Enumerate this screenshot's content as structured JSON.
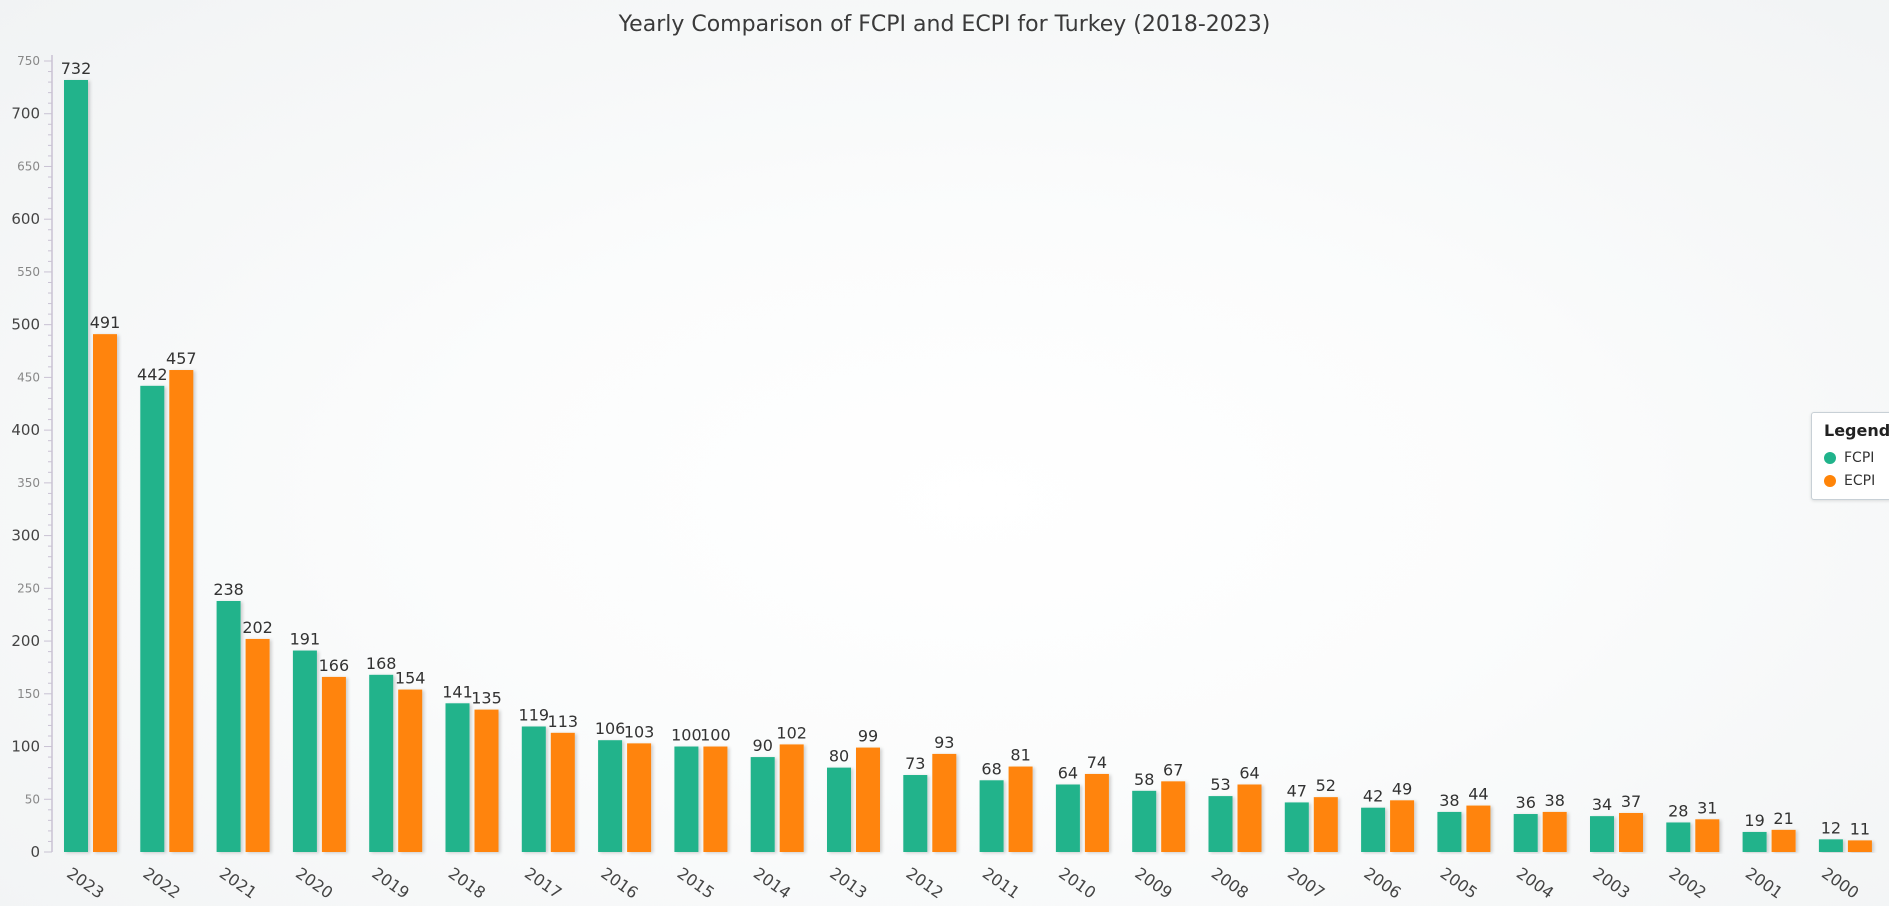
{
  "chart_data": {
    "type": "bar",
    "title": "Yearly Comparison of FCPI and ECPI for Turkey (2018-2023)",
    "xlabel": "",
    "ylabel": "",
    "ylim": [
      0,
      750
    ],
    "y_ticks": [
      0,
      50,
      100,
      150,
      200,
      250,
      300,
      350,
      400,
      450,
      500,
      550,
      600,
      650,
      700,
      750
    ],
    "categories": [
      "2023",
      "2022",
      "2021",
      "2020",
      "2019",
      "2018",
      "2017",
      "2016",
      "2015",
      "2014",
      "2013",
      "2012",
      "2011",
      "2010",
      "2009",
      "2008",
      "2007",
      "2006",
      "2005",
      "2004",
      "2003",
      "2002",
      "2001",
      "2000"
    ],
    "series": [
      {
        "name": "FCPI",
        "color": "#20b38b",
        "values": [
          732,
          442,
          238,
          191,
          168,
          141,
          119,
          106,
          100,
          90,
          80,
          73,
          68,
          64,
          58,
          53,
          47,
          42,
          38,
          36,
          34,
          28,
          19,
          12
        ]
      },
      {
        "name": "ECPI",
        "color": "#ff8408",
        "values": [
          491,
          457,
          202,
          166,
          154,
          135,
          113,
          103,
          100,
          102,
          99,
          93,
          81,
          74,
          67,
          64,
          52,
          49,
          44,
          38,
          37,
          31,
          21,
          11
        ]
      }
    ],
    "legend": {
      "title": "Legend",
      "position": "right"
    }
  }
}
